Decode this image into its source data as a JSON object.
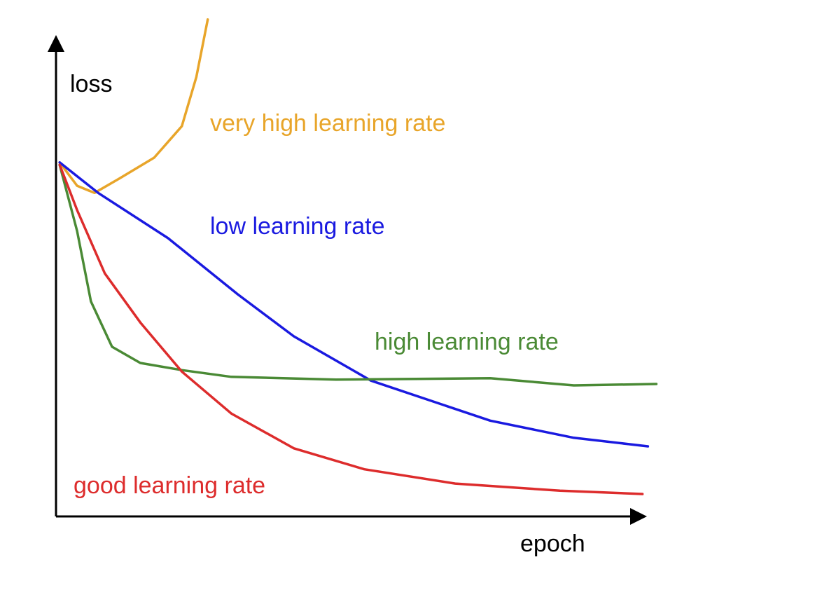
{
  "chart_data": {
    "type": "line",
    "x_label": "epoch",
    "y_label": "loss",
    "xlim": [
      0,
      100
    ],
    "ylim": [
      0,
      105
    ],
    "series": [
      {
        "name": "very high learning rate",
        "color": "#e8a52a",
        "x": [
          0.6,
          3.5,
          6.4,
          10.5,
          16.3,
          20.9,
          23.3,
          25.2
        ],
        "values": [
          74.3,
          69.4,
          67.9,
          70.9,
          75.3,
          81.9,
          92.2,
          104.3
        ]
      },
      {
        "name": "low learning rate",
        "color": "#1a1ae0",
        "x": [
          0.6,
          7.0,
          18.6,
          30.2,
          39.5,
          52.3,
          72.1,
          86.0,
          98.3
        ],
        "values": [
          74.3,
          67.9,
          58.4,
          46.6,
          37.8,
          28.5,
          20.1,
          16.5,
          14.7
        ]
      },
      {
        "name": "high learning rate",
        "color": "#4a8a35",
        "x": [
          0.6,
          3.5,
          5.8,
          9.3,
          14.0,
          20.9,
          29.1,
          46.5,
          72.1,
          86.0,
          99.7
        ],
        "values": [
          73.8,
          59.9,
          45.1,
          35.6,
          32.2,
          30.7,
          29.3,
          28.7,
          29.0,
          27.5,
          27.8
        ]
      },
      {
        "name": "good learning rate",
        "color": "#dd2c2c",
        "x": [
          0.6,
          3.5,
          8.1,
          14.0,
          20.9,
          29.1,
          39.5,
          51.2,
          66.3,
          83.7,
          97.4
        ],
        "values": [
          73.8,
          64.3,
          51.0,
          40.7,
          30.4,
          21.6,
          14.3,
          9.9,
          6.9,
          5.4,
          4.7
        ]
      }
    ]
  }
}
